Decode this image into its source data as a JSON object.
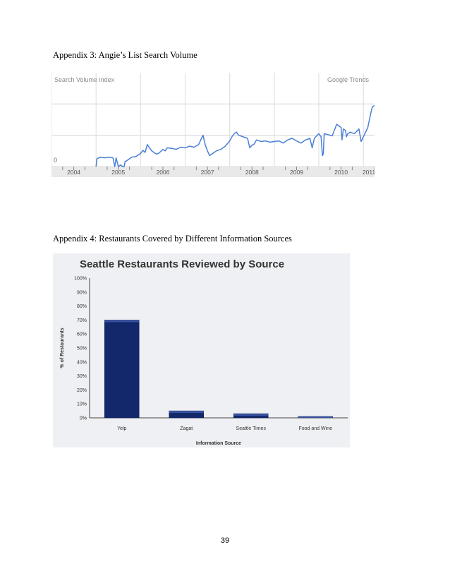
{
  "page": {
    "caption_appendix3": "Appendix 3: Angie’s List Search Volume",
    "caption_appendix4": "Appendix 4: Restaurants Covered by Different Information Sources",
    "page_number": "39"
  },
  "colors": {
    "trend_line": "#4a7fd8",
    "bar_fill": "#13276b",
    "bar_top": "#3852a0",
    "bar_panel_bg": "#eff0f3"
  },
  "chart_data": [
    {
      "type": "line",
      "title": "",
      "top_left_label": "Search Volume index",
      "top_right_label": "Google Trends",
      "zero_label": "0",
      "x_tick_labels": [
        "2004",
        "2005",
        "2006",
        "2007",
        "2008",
        "2009",
        "2010",
        "2011"
      ],
      "xlim": [
        2004.0,
        2011.25
      ],
      "ylim": [
        0,
        2.5
      ],
      "grid": true,
      "series": [
        {
          "name": "",
          "x": [
            2005.0,
            2005.02,
            2005.1,
            2005.2,
            2005.3,
            2005.38,
            2005.42,
            2005.45,
            2005.5,
            2005.55,
            2005.6,
            2005.63,
            2005.65,
            2005.7,
            2005.8,
            2005.9,
            2006.0,
            2006.05,
            2006.1,
            2006.15,
            2006.2,
            2006.25,
            2006.3,
            2006.35,
            2006.4,
            2006.45,
            2006.5,
            2006.55,
            2006.6,
            2006.7,
            2006.8,
            2006.9,
            2007.0,
            2007.1,
            2007.2,
            2007.3,
            2007.35,
            2007.4,
            2007.45,
            2007.5,
            2007.55,
            2007.6,
            2007.65,
            2007.7,
            2007.8,
            2007.85,
            2007.9,
            2008.0,
            2008.05,
            2008.1,
            2008.15,
            2008.2,
            2008.3,
            2008.4,
            2008.45,
            2008.5,
            2008.55,
            2008.6,
            2008.7,
            2008.8,
            2008.9,
            2009.0,
            2009.1,
            2009.2,
            2009.3,
            2009.4,
            2009.5,
            2009.6,
            2009.7,
            2009.8,
            2009.85,
            2009.9,
            2010.0,
            2010.05,
            2010.08,
            2010.1,
            2010.12,
            2010.2,
            2010.3,
            2010.4,
            2010.5,
            2010.52,
            2010.55,
            2010.6,
            2010.62,
            2010.65,
            2010.7,
            2010.8,
            2010.9,
            2010.95,
            2011.0,
            2011.05,
            2011.1,
            2011.15,
            2011.2,
            2011.25
          ],
          "y": [
            0.0,
            0.25,
            0.3,
            0.28,
            0.3,
            0.28,
            0.0,
            0.28,
            0.0,
            0.05,
            0.0,
            0.0,
            0.15,
            0.2,
            0.3,
            0.32,
            0.42,
            0.52,
            0.45,
            0.7,
            0.6,
            0.5,
            0.45,
            0.4,
            0.42,
            0.48,
            0.55,
            0.5,
            0.6,
            0.58,
            0.55,
            0.62,
            0.6,
            0.65,
            0.62,
            0.7,
            0.85,
            1.0,
            0.7,
            0.5,
            0.35,
            0.4,
            0.45,
            0.5,
            0.55,
            0.6,
            0.65,
            0.82,
            0.95,
            1.05,
            1.1,
            1.0,
            0.95,
            0.9,
            0.6,
            0.68,
            0.72,
            0.85,
            0.8,
            0.82,
            0.78,
            0.8,
            0.82,
            0.75,
            0.85,
            0.9,
            0.82,
            0.75,
            0.85,
            0.9,
            0.6,
            0.9,
            1.05,
            0.95,
            0.35,
            0.4,
            1.05,
            1.02,
            0.98,
            1.35,
            1.25,
            0.85,
            1.2,
            1.15,
            0.95,
            1.05,
            1.1,
            1.05,
            1.2,
            0.8,
            0.95,
            1.1,
            1.25,
            1.6,
            1.9,
            1.95
          ]
        }
      ]
    },
    {
      "type": "bar",
      "title": "Seattle Restaurants Reviewed by Source",
      "xlabel": "Information Source",
      "ylabel": "% of Restaurants",
      "categories": [
        "Yelp",
        "Zagat",
        "Seattle Times",
        "Food and Wine"
      ],
      "values": [
        70,
        5,
        3,
        1
      ],
      "ylim": [
        0,
        100
      ],
      "y_tick_labels": [
        "0%",
        "10%",
        "20%",
        "30%",
        "40%",
        "50%",
        "60%",
        "70%",
        "80%",
        "90%",
        "100%"
      ],
      "grid": false,
      "legend": "none"
    }
  ]
}
